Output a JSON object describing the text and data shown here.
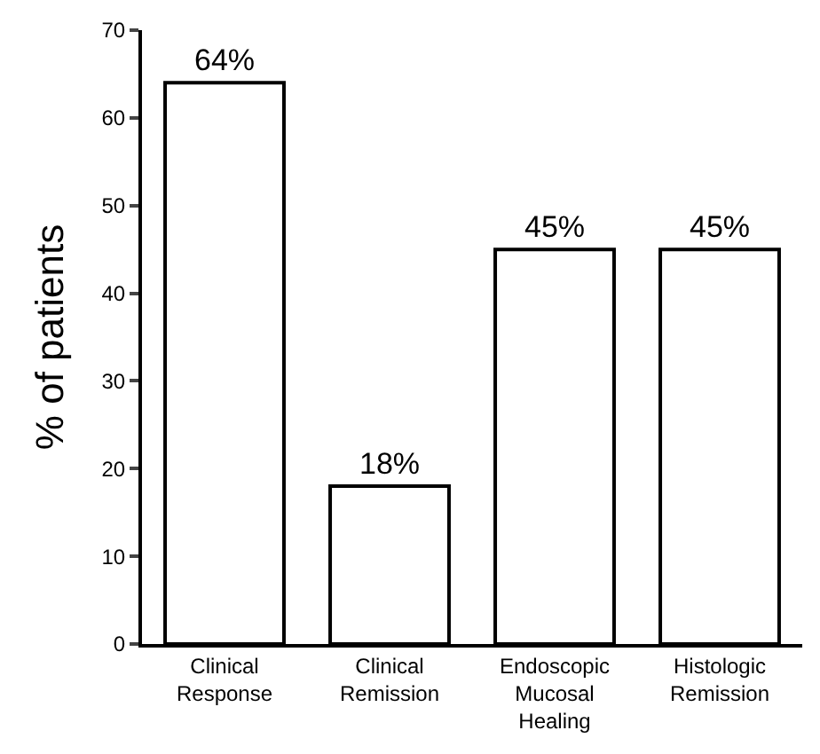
{
  "chart_data": {
    "type": "bar",
    "ylabel": "% of patients",
    "categories": [
      "Clinical Response",
      "Clinical Remission",
      "Endoscopic Mucosal Healing",
      "Histologic Remission"
    ],
    "values": [
      64,
      18,
      45,
      45
    ],
    "value_labels": [
      "64%",
      "18%",
      "45%",
      "45%"
    ],
    "color": "#ffffff",
    "ylim": [
      0,
      70
    ],
    "yticks": [
      0,
      10,
      20,
      30,
      40,
      50,
      60,
      70
    ],
    "legend": false
  }
}
